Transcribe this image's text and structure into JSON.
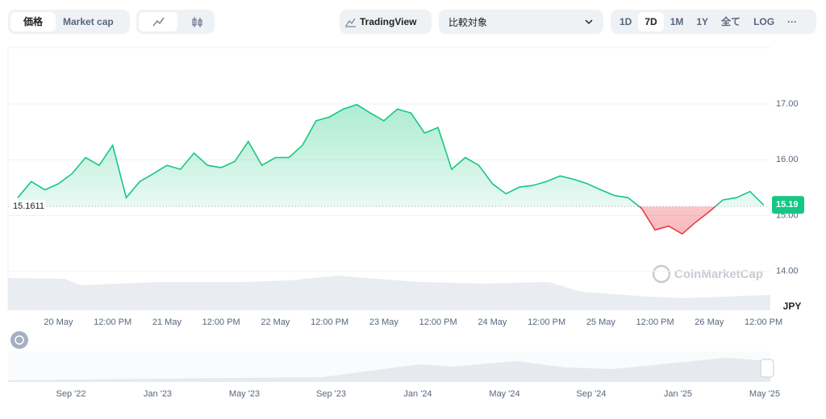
{
  "toolbar": {
    "price": "価格",
    "market_cap": "Market cap",
    "tradingview": "TradingView",
    "compare": "比較対象",
    "ranges": [
      "1D",
      "7D",
      "1M",
      "1Y",
      "全て",
      "LOG",
      "···"
    ],
    "active_range": 1
  },
  "chart_data": {
    "type": "line",
    "y_label": "JPY",
    "watermark": "CoinMarketCap",
    "categories": [
      null,
      null,
      null,
      "20 May",
      null,
      null,
      null,
      "12:00 PM",
      null,
      null,
      null,
      "21 May",
      null,
      null,
      null,
      "12:00 PM",
      null,
      null,
      null,
      "22 May",
      null,
      null,
      null,
      "12:00 PM",
      null,
      null,
      null,
      "23 May",
      null,
      null,
      null,
      "12:00 PM",
      null,
      null,
      null,
      "24 May",
      null,
      null,
      null,
      "12:00 PM",
      null,
      null,
      null,
      "25 May",
      null,
      null,
      null,
      "12:00 PM",
      null,
      null,
      null,
      "26 May",
      null,
      null,
      null,
      "12:00 PM"
    ],
    "series": [
      {
        "name": "Price",
        "color": "#16c784",
        "down_color": "#ea3943",
        "values": [
          15.32,
          15.61,
          15.46,
          15.57,
          15.75,
          16.04,
          15.9,
          16.26,
          15.32,
          15.61,
          15.75,
          15.9,
          15.83,
          16.12,
          15.9,
          15.86,
          15.97,
          16.33,
          15.9,
          16.04,
          16.04,
          16.26,
          16.7,
          16.77,
          16.91,
          16.99,
          16.84,
          16.7,
          16.91,
          16.84,
          16.48,
          16.58,
          15.83,
          16.04,
          15.9,
          15.57,
          15.39,
          15.51,
          15.54,
          15.61,
          15.71,
          15.65,
          15.57,
          15.46,
          15.36,
          15.32,
          15.13,
          14.74,
          14.81,
          14.67,
          14.88,
          15.07,
          15.28,
          15.32,
          15.43,
          15.19
        ]
      }
    ],
    "baseline": 15.1611,
    "last_price": 15.19,
    "ylim": [
      13.3,
      18.0
    ],
    "yticks": [
      {
        "value": 14,
        "label": "14.00"
      },
      {
        "value": 15,
        "label": "15.00"
      },
      {
        "value": 16,
        "label": "16.00"
      },
      {
        "value": 17,
        "label": "17.00"
      }
    ],
    "grid": true
  },
  "navigator": {
    "labels": [
      "Sep '22",
      "Jan '23",
      "May '23",
      "Sep '23",
      "Jan '24",
      "May '24",
      "Sep '24",
      "Jan '25",
      "May '25"
    ]
  }
}
